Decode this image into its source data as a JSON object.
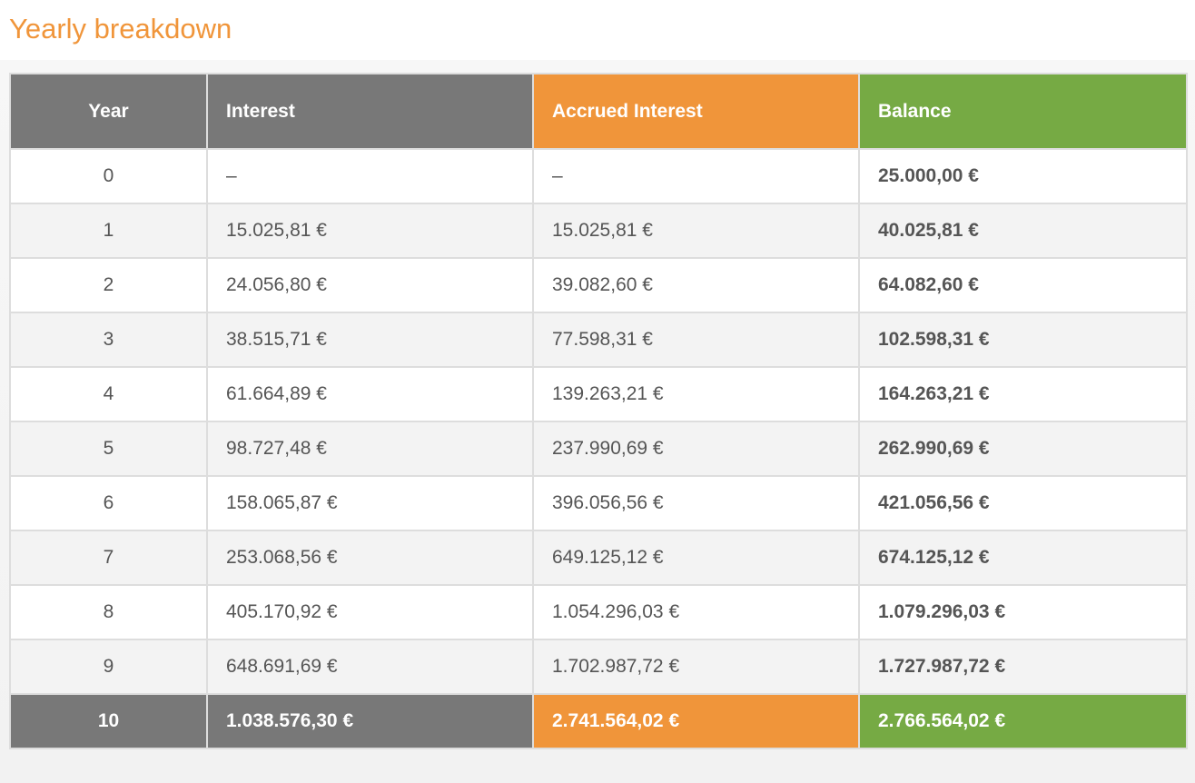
{
  "title": "Yearly breakdown",
  "colors": {
    "accent_orange": "#f0953a",
    "accent_green": "#76aa44",
    "header_gray": "#787878"
  },
  "table": {
    "headers": {
      "year": "Year",
      "interest": "Interest",
      "accrued_interest": "Accrued Interest",
      "balance": "Balance"
    },
    "rows": [
      {
        "year": "0",
        "interest": "–",
        "accrued": "–",
        "balance": "25.000,00 €"
      },
      {
        "year": "1",
        "interest": "15.025,81 €",
        "accrued": "15.025,81 €",
        "balance": "40.025,81 €"
      },
      {
        "year": "2",
        "interest": "24.056,80 €",
        "accrued": "39.082,60 €",
        "balance": "64.082,60 €"
      },
      {
        "year": "3",
        "interest": "38.515,71 €",
        "accrued": "77.598,31 €",
        "balance": "102.598,31 €"
      },
      {
        "year": "4",
        "interest": "61.664,89 €",
        "accrued": "139.263,21 €",
        "balance": "164.263,21 €"
      },
      {
        "year": "5",
        "interest": "98.727,48 €",
        "accrued": "237.990,69 €",
        "balance": "262.990,69 €"
      },
      {
        "year": "6",
        "interest": "158.065,87 €",
        "accrued": "396.056,56 €",
        "balance": "421.056,56 €"
      },
      {
        "year": "7",
        "interest": "253.068,56 €",
        "accrued": "649.125,12 €",
        "balance": "674.125,12 €"
      },
      {
        "year": "8",
        "interest": "405.170,92 €",
        "accrued": "1.054.296,03 €",
        "balance": "1.079.296,03 €"
      },
      {
        "year": "9",
        "interest": "648.691,69 €",
        "accrued": "1.702.987,72 €",
        "balance": "1.727.987,72 €"
      }
    ],
    "footer": {
      "year": "10",
      "interest": "1.038.576,30 €",
      "accrued": "2.741.564,02 €",
      "balance": "2.766.564,02 €"
    }
  }
}
